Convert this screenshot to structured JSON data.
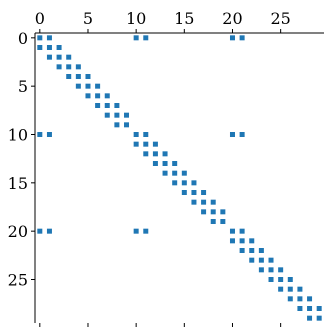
{
  "chart_data": {
    "type": "scatter",
    "title": "",
    "xlabel": "",
    "ylabel": "",
    "xlim": [
      -0.5,
      29.5
    ],
    "ylim": [
      29.5,
      -0.5
    ],
    "x_ticks": [
      "0",
      "5",
      "10",
      "15",
      "20",
      "25"
    ],
    "y_ticks": [
      "0",
      "5",
      "10",
      "15",
      "20",
      "25"
    ],
    "x_tick_values": [
      0,
      5,
      10,
      15,
      20,
      25
    ],
    "y_tick_values": [
      0,
      5,
      10,
      15,
      20,
      25
    ],
    "x_axis_position": "top",
    "y_inverted": true,
    "grid": false,
    "marker_color": "#1f77b4",
    "series": [
      {
        "points": [
          [
            0,
            0
          ],
          [
            1,
            0
          ],
          [
            10,
            0
          ],
          [
            11,
            0
          ],
          [
            20,
            0
          ],
          [
            21,
            0
          ],
          [
            0,
            1
          ],
          [
            1,
            1
          ],
          [
            2,
            1
          ],
          [
            1,
            2
          ],
          [
            2,
            2
          ],
          [
            3,
            2
          ],
          [
            2,
            3
          ],
          [
            3,
            3
          ],
          [
            4,
            3
          ],
          [
            3,
            4
          ],
          [
            4,
            4
          ],
          [
            5,
            4
          ],
          [
            4,
            5
          ],
          [
            5,
            5
          ],
          [
            6,
            5
          ],
          [
            5,
            6
          ],
          [
            6,
            6
          ],
          [
            7,
            6
          ],
          [
            6,
            7
          ],
          [
            7,
            7
          ],
          [
            8,
            7
          ],
          [
            7,
            8
          ],
          [
            8,
            8
          ],
          [
            9,
            8
          ],
          [
            8,
            9
          ],
          [
            9,
            9
          ],
          [
            0,
            10
          ],
          [
            1,
            10
          ],
          [
            10,
            10
          ],
          [
            11,
            10
          ],
          [
            20,
            10
          ],
          [
            21,
            10
          ],
          [
            10,
            11
          ],
          [
            11,
            11
          ],
          [
            12,
            11
          ],
          [
            11,
            12
          ],
          [
            12,
            12
          ],
          [
            13,
            12
          ],
          [
            12,
            13
          ],
          [
            13,
            13
          ],
          [
            14,
            13
          ],
          [
            13,
            14
          ],
          [
            14,
            14
          ],
          [
            15,
            14
          ],
          [
            14,
            15
          ],
          [
            15,
            15
          ],
          [
            16,
            15
          ],
          [
            15,
            16
          ],
          [
            16,
            16
          ],
          [
            17,
            16
          ],
          [
            16,
            17
          ],
          [
            17,
            17
          ],
          [
            18,
            17
          ],
          [
            17,
            18
          ],
          [
            18,
            18
          ],
          [
            19,
            18
          ],
          [
            18,
            19
          ],
          [
            19,
            19
          ],
          [
            0,
            20
          ],
          [
            1,
            20
          ],
          [
            10,
            20
          ],
          [
            11,
            20
          ],
          [
            20,
            20
          ],
          [
            21,
            20
          ],
          [
            20,
            21
          ],
          [
            21,
            21
          ],
          [
            22,
            21
          ],
          [
            21,
            22
          ],
          [
            22,
            22
          ],
          [
            23,
            22
          ],
          [
            22,
            23
          ],
          [
            23,
            23
          ],
          [
            24,
            23
          ],
          [
            23,
            24
          ],
          [
            24,
            24
          ],
          [
            25,
            24
          ],
          [
            24,
            25
          ],
          [
            25,
            25
          ],
          [
            26,
            25
          ],
          [
            25,
            26
          ],
          [
            26,
            26
          ],
          [
            27,
            26
          ],
          [
            26,
            27
          ],
          [
            27,
            27
          ],
          [
            28,
            27
          ],
          [
            27,
            28
          ],
          [
            28,
            28
          ],
          [
            29,
            28
          ],
          [
            28,
            29
          ],
          [
            29,
            29
          ]
        ]
      }
    ]
  }
}
